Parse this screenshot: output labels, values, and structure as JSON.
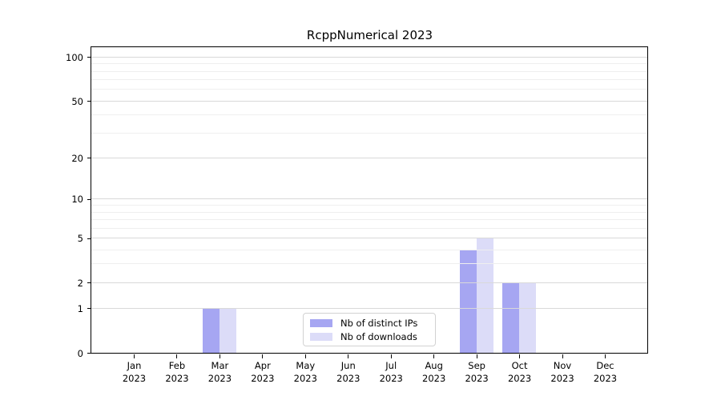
{
  "chart_data": {
    "type": "bar",
    "title": "RcppNumerical 2023",
    "categories": [
      "Jan",
      "Feb",
      "Mar",
      "Apr",
      "May",
      "Jun",
      "Jul",
      "Aug",
      "Sep",
      "Oct",
      "Nov",
      "Dec"
    ],
    "year": "2023",
    "series": [
      {
        "name": "Nb of distinct IPs",
        "color": "#a6a6f2",
        "values": [
          0,
          0,
          1,
          0,
          0,
          0,
          0,
          0,
          4,
          2,
          0,
          0
        ]
      },
      {
        "name": "Nb of downloads",
        "color": "#dcdcf8",
        "values": [
          0,
          0,
          1,
          0,
          0,
          0,
          0,
          0,
          5,
          2,
          0,
          0
        ]
      }
    ],
    "yscale": "log1p",
    "ylim": [
      0,
      117
    ],
    "yticks_major": [
      0,
      1,
      2,
      5,
      10,
      20,
      50,
      100
    ],
    "yticks_minor": [
      3,
      4,
      6,
      7,
      8,
      9,
      30,
      40,
      60,
      70,
      80,
      90
    ],
    "xlabel": "",
    "ylabel": "",
    "grid": "horizontal",
    "legend": {
      "position": "lower-center-inside",
      "labels": [
        "Nb of distinct IPs",
        "Nb of downloads"
      ]
    }
  }
}
